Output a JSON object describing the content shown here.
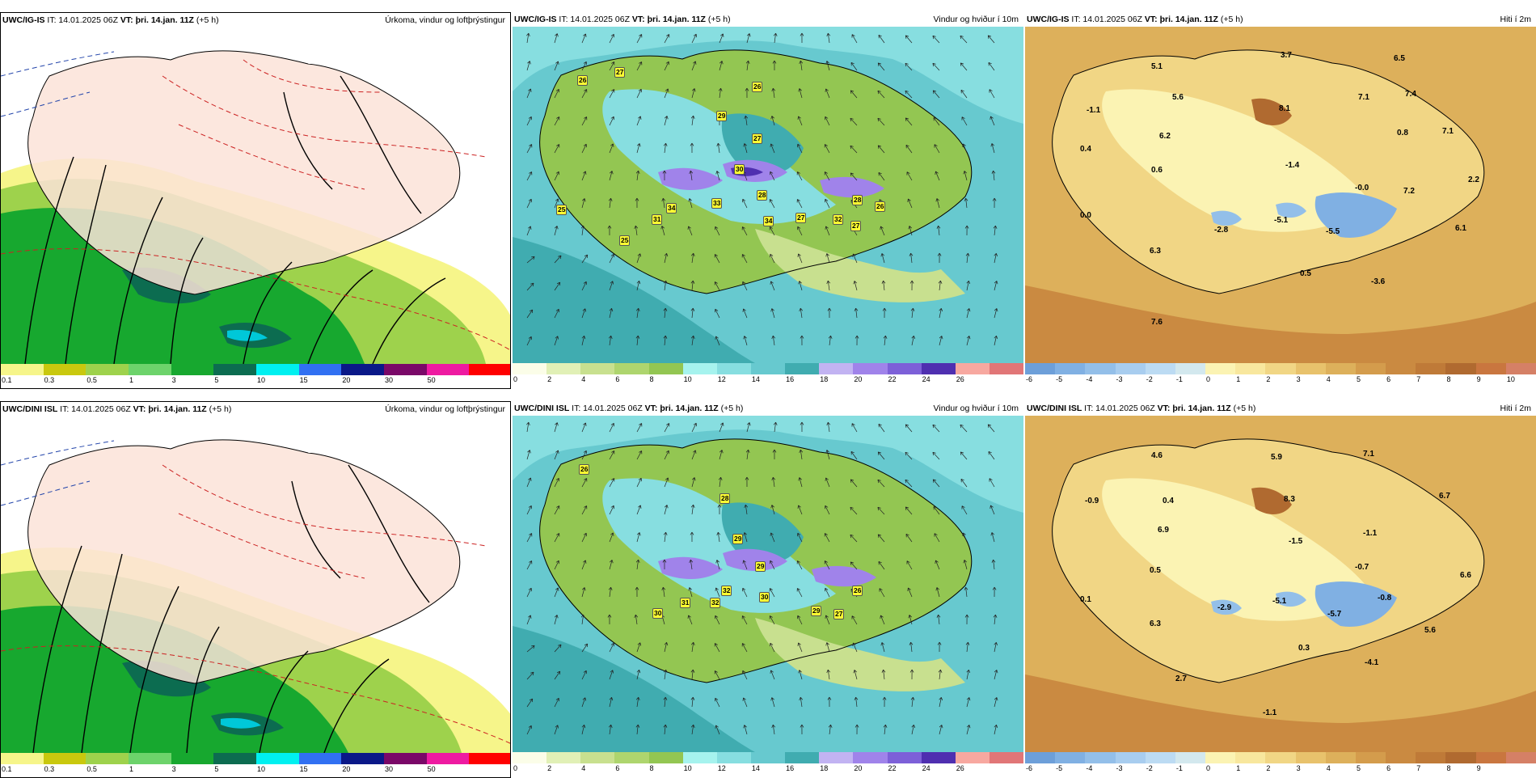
{
  "rows": [
    {
      "model": "UWC/IG-IS",
      "it": "IT: 14.01.2025 06Z",
      "vt_label": "VT:",
      "vt_value": "þri. 14.jan. 11Z",
      "offset": "(+5 h)",
      "precip_title": "Úrkoma, vindur og loftþrýstingur",
      "wind_title": "Vindur og hviður í 10m",
      "temp_title": "Hiti í 2m",
      "gusts": [
        "26",
        "27",
        "26",
        "29",
        "27",
        "30",
        "28",
        "25",
        "31",
        "34",
        "33",
        "34",
        "27",
        "32",
        "28",
        "27",
        "26",
        "25"
      ],
      "temps": [
        "5.1",
        "3.7",
        "6.5",
        "-1.1",
        "5.6",
        "7.4",
        "8.1",
        "7.1",
        "0.4",
        "6.2",
        "0.8",
        "7.1",
        "0.6",
        "-1.4",
        "-0.0",
        "7.2",
        "2.2",
        "0.0",
        "-2.8",
        "-5.1",
        "-5.5",
        "6.1",
        "6.3",
        "0.5",
        "-3.6",
        "7.6"
      ]
    },
    {
      "model": "UWC/DINI ISL",
      "it": "IT: 14.01.2025 06Z",
      "vt_label": "VT:",
      "vt_value": "þri. 14.jan. 11Z",
      "offset": "(+5 h)",
      "precip_title": "Úrkoma, vindur og loftþrýstingur",
      "wind_title": "Vindur og hviður í 10m",
      "temp_title": "Hiti í 2m",
      "gusts": [
        "26",
        "28",
        "29",
        "29",
        "30",
        "31",
        "32",
        "32",
        "30",
        "29",
        "27",
        "26"
      ],
      "temps": [
        "4.6",
        "5.9",
        "7.1",
        "-0.9",
        "0.4",
        "8.3",
        "6.7",
        "6.9",
        "-1.5",
        "-1.1",
        "0.5",
        "-0.7",
        "6.6",
        "0.1",
        "-2.9",
        "-5.1",
        "-5.7",
        "-0.8",
        "6.3",
        "5.6",
        "0.3",
        "-4.1",
        "2.7",
        "-1.1"
      ]
    }
  ],
  "precip_scale": {
    "labels": [
      "0.1",
      "0.3",
      "0.5",
      "1",
      "3",
      "5",
      "10",
      "15",
      "20",
      "30",
      "50"
    ],
    "colors": [
      "#f6f58a",
      "#c9c80e",
      "#9ed24c",
      "#6dd36b",
      "#17a82f",
      "#0c6c50",
      "#00f0f0",
      "#3170f2",
      "#0a1888",
      "#7a0868",
      "#ee1aa1",
      "#ff0000"
    ]
  },
  "wind_scale": {
    "labels": [
      "0",
      "2",
      "4",
      "6",
      "8",
      "10",
      "12",
      "14",
      "16",
      "18",
      "20",
      "22",
      "24",
      "26"
    ],
    "colors": [
      "#fbfde8",
      "#e1f0b6",
      "#c8e08f",
      "#aed56e",
      "#93c652",
      "#a6f3ee",
      "#87dee0",
      "#67c9cf",
      "#40acb0",
      "#c2b3f2",
      "#a083ea",
      "#7d60d8",
      "#4f2fb0",
      "#f7a8a0",
      "#e17677"
    ]
  },
  "temp_scale": {
    "labels_row1": [
      "-6",
      "-5",
      "-4",
      "-3",
      "-2",
      "-1",
      "0",
      "1",
      "2",
      "3",
      "4",
      "5",
      "6",
      "7",
      "8",
      "9",
      "10"
    ],
    "labels_row2": [
      "-6",
      "-5",
      "-4",
      "-3",
      "-2",
      "-1",
      "0",
      "1",
      "2",
      "3",
      "4",
      "5",
      "6",
      "7",
      "8",
      "9"
    ],
    "colors": [
      "#6d9fd9",
      "#80b0e3",
      "#93bfe9",
      "#a8cdef",
      "#bcdbf3",
      "#d3e8ee",
      "#fbf3b3",
      "#f8e79e",
      "#f1d685",
      "#e8c26c",
      "#ddb05b",
      "#d49c4c",
      "#ca8a41",
      "#bf7a38",
      "#b06a30",
      "#c9763f",
      "#d58066"
    ]
  }
}
